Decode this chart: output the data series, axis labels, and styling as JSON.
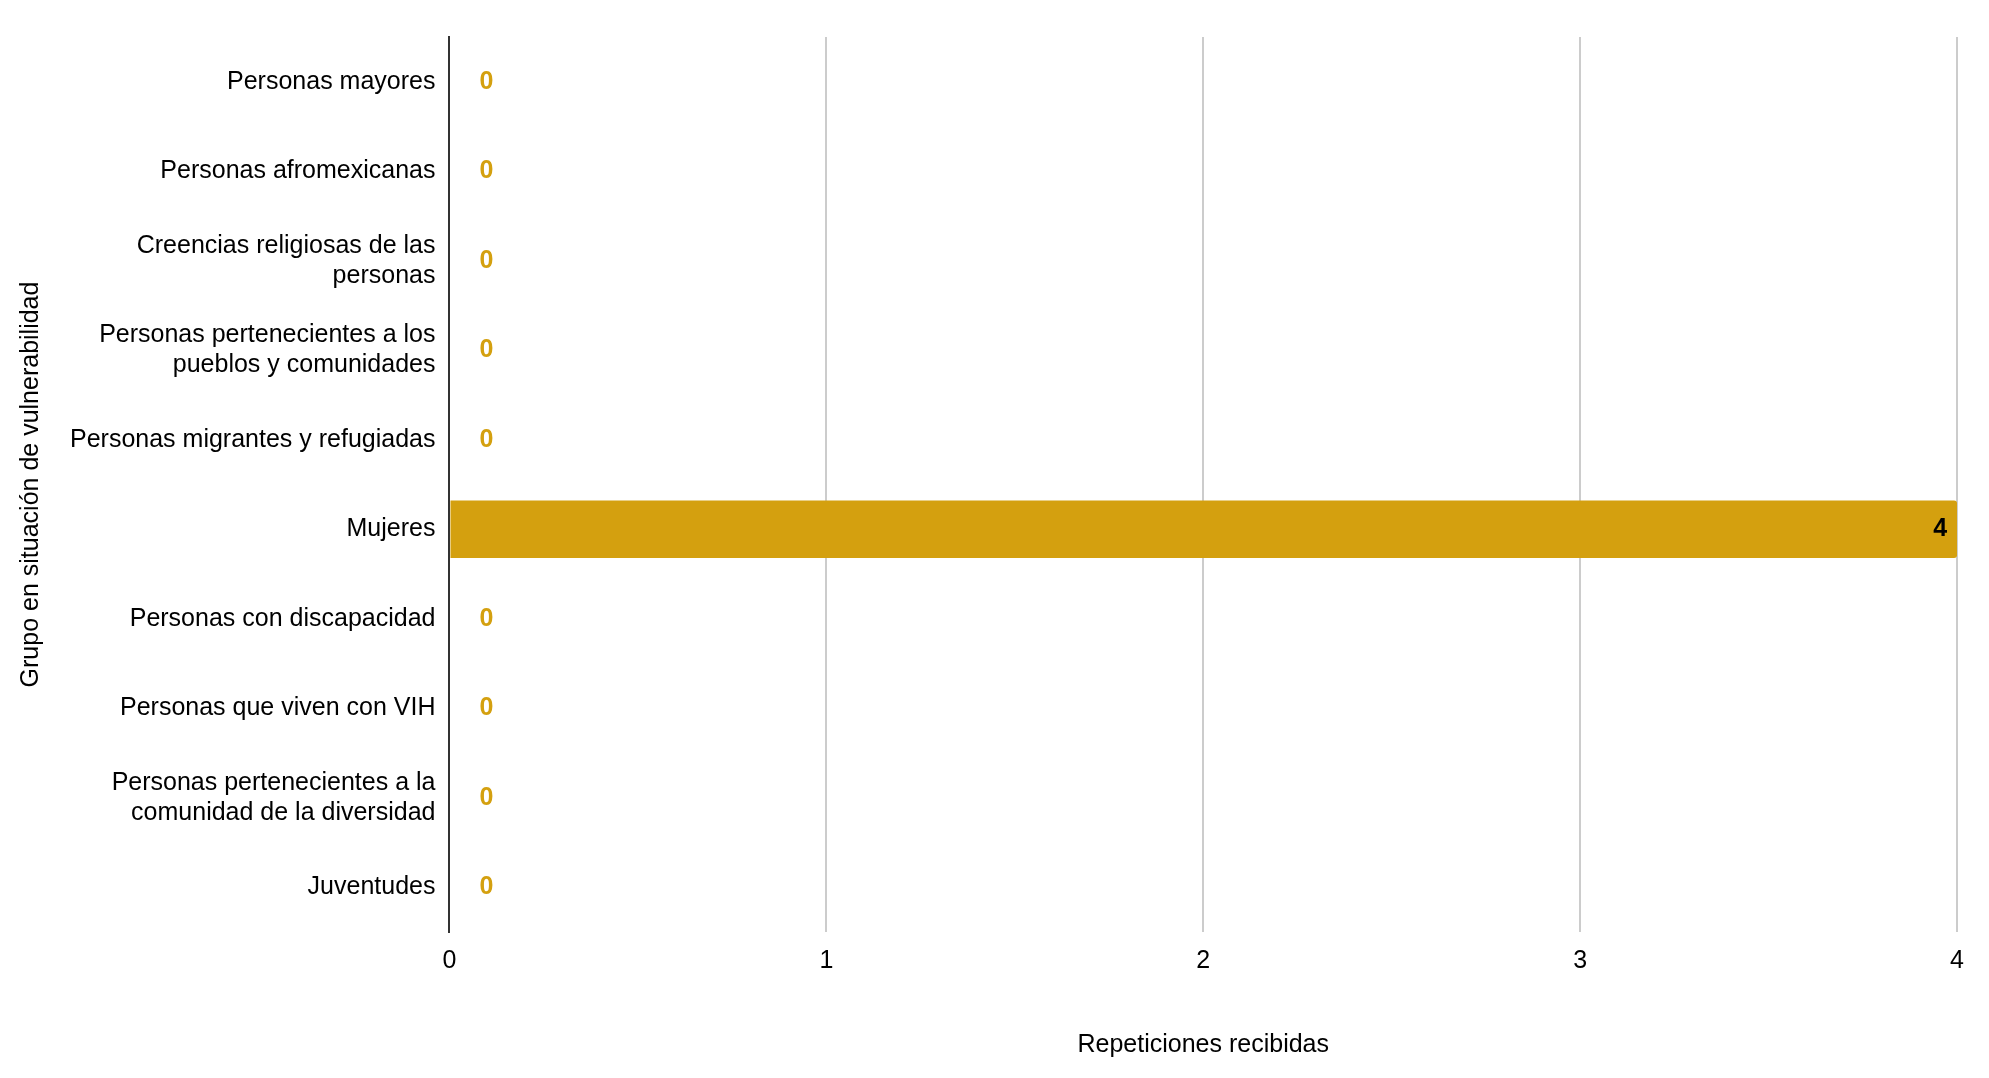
{
  "chart_data": {
    "type": "bar",
    "orientation": "horizontal",
    "xlabel": "Repeticiones recibidas",
    "ylabel": "Grupo en situación de vulnerabilidad",
    "categories": [
      "Personas mayores",
      "Personas afromexicanas",
      "Creencias religiosas de las personas",
      "Personas pertenecientes a los pueblos y comunidades",
      "Personas migrantes y refugiadas",
      "Mujeres",
      "Personas con discapacidad",
      "Personas que viven con VIH",
      "Personas pertenecientes a la comunidad de la diversidad",
      "Juventudes"
    ],
    "values": [
      0,
      0,
      0,
      0,
      0,
      4,
      0,
      0,
      0,
      0
    ],
    "color": "#d4a00f",
    "xlim": [
      0,
      4
    ],
    "xticks": [
      0,
      1,
      2,
      3,
      4
    ],
    "grid": "x",
    "data_labels": true,
    "legend": false
  }
}
